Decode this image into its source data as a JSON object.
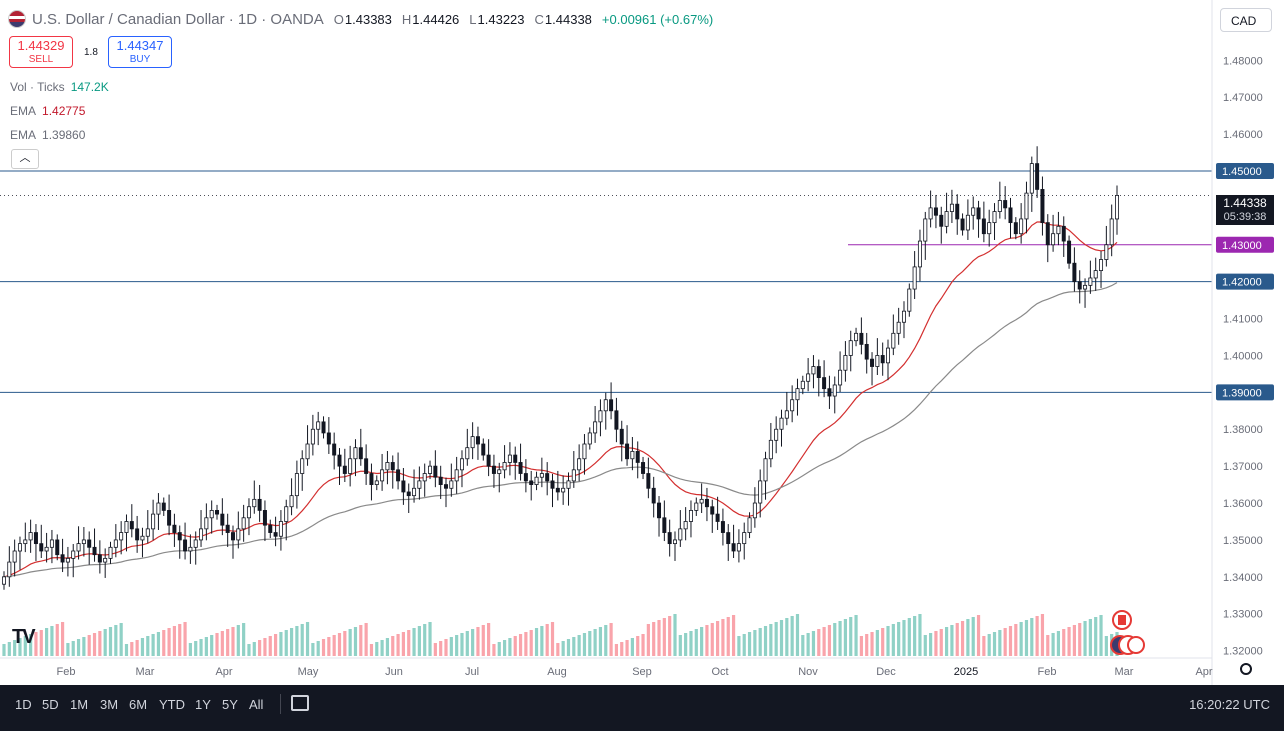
{
  "header": {
    "symbol_title": "U.S. Dollar / Canadian Dollar · 1D · OANDA",
    "open_label": "O",
    "open": "1.43383",
    "high_label": "H",
    "high": "1.44426",
    "low_label": "L",
    "low": "1.43223",
    "close_label": "C",
    "close": "1.44338",
    "change": "+0.00961 (+0.67%)"
  },
  "trade": {
    "sell_price": "1.44329",
    "sell_label": "SELL",
    "spread": "1.8",
    "buy_price": "1.44347",
    "buy_label": "BUY"
  },
  "indicators": [
    {
      "name": "Vol · Ticks",
      "value": "147.2K",
      "color": "#089981"
    },
    {
      "name": "EMA",
      "value": "1.42775",
      "color": "#c2182b"
    },
    {
      "name": "EMA",
      "value": "1.39860",
      "color": "#6a6d78"
    }
  ],
  "currency": "CAD",
  "last_price_label": {
    "price": "1.44338",
    "countdown": "05:39:38"
  },
  "timeframes": [
    "1D",
    "5D",
    "1M",
    "3M",
    "6M",
    "YTD",
    "1Y",
    "5Y",
    "All"
  ],
  "clock": "16:20:22 UTC",
  "chart_data": {
    "type": "candlestick",
    "x_ticks": [
      "Feb",
      "Mar",
      "Apr",
      "May",
      "Jun",
      "Jul",
      "Aug",
      "Sep",
      "Oct",
      "Nov",
      "Dec",
      "2025",
      "Feb",
      "Mar",
      "Apr"
    ],
    "y_ticks": [
      "1.48000",
      "1.47000",
      "1.46000",
      "1.45000",
      "1.44000",
      "1.43000",
      "1.42000",
      "1.41000",
      "1.40000",
      "1.39000",
      "1.38000",
      "1.37000",
      "1.36000",
      "1.35000",
      "1.34000",
      "1.33000",
      "1.32000"
    ],
    "ylim": [
      1.318,
      1.4855
    ],
    "horizontal_levels": [
      {
        "label": "1.45000",
        "value": 1.45,
        "color": "#2a5a8c"
      },
      {
        "label": "1.43000",
        "value": 1.43,
        "color": "#9c27b0"
      },
      {
        "label": "1.42000",
        "value": 1.42,
        "color": "#2a5a8c"
      },
      {
        "label": "1.39000",
        "value": 1.39,
        "color": "#2a5a8c"
      }
    ],
    "last_close": 1.44338,
    "up_color": "#ffffff",
    "down_color": "#131722",
    "ema_fast_color": "#d32f2f",
    "ema_slow_color": "#8a8a8a",
    "close_series": [
      1.34,
      1.344,
      1.347,
      1.349,
      1.35,
      1.352,
      1.349,
      1.347,
      1.348,
      1.35,
      1.346,
      1.344,
      1.345,
      1.347,
      1.349,
      1.35,
      1.348,
      1.346,
      1.344,
      1.345,
      1.348,
      1.35,
      1.352,
      1.355,
      1.353,
      1.35,
      1.351,
      1.353,
      1.357,
      1.36,
      1.358,
      1.354,
      1.352,
      1.35,
      1.347,
      1.348,
      1.35,
      1.353,
      1.356,
      1.358,
      1.357,
      1.354,
      1.352,
      1.35,
      1.353,
      1.356,
      1.359,
      1.361,
      1.358,
      1.354,
      1.352,
      1.351,
      1.355,
      1.359,
      1.362,
      1.368,
      1.372,
      1.376,
      1.38,
      1.382,
      1.379,
      1.376,
      1.373,
      1.37,
      1.368,
      1.372,
      1.375,
      1.372,
      1.368,
      1.365,
      1.366,
      1.369,
      1.371,
      1.369,
      1.366,
      1.363,
      1.362,
      1.364,
      1.366,
      1.368,
      1.37,
      1.367,
      1.365,
      1.364,
      1.366,
      1.369,
      1.372,
      1.375,
      1.378,
      1.376,
      1.373,
      1.37,
      1.368,
      1.369,
      1.371,
      1.373,
      1.371,
      1.368,
      1.366,
      1.365,
      1.367,
      1.368,
      1.366,
      1.364,
      1.363,
      1.364,
      1.366,
      1.369,
      1.372,
      1.376,
      1.379,
      1.382,
      1.385,
      1.388,
      1.385,
      1.38,
      1.376,
      1.372,
      1.374,
      1.371,
      1.368,
      1.364,
      1.36,
      1.356,
      1.352,
      1.349,
      1.35,
      1.353,
      1.355,
      1.358,
      1.36,
      1.361,
      1.359,
      1.357,
      1.355,
      1.352,
      1.349,
      1.347,
      1.349,
      1.352,
      1.356,
      1.36,
      1.366,
      1.372,
      1.377,
      1.38,
      1.383,
      1.385,
      1.388,
      1.391,
      1.393,
      1.395,
      1.397,
      1.394,
      1.391,
      1.389,
      1.392,
      1.396,
      1.4,
      1.404,
      1.406,
      1.403,
      1.399,
      1.397,
      1.4,
      1.398,
      1.402,
      1.406,
      1.409,
      1.412,
      1.418,
      1.424,
      1.431,
      1.437,
      1.44,
      1.438,
      1.435,
      1.439,
      1.441,
      1.437,
      1.434,
      1.438,
      1.44,
      1.437,
      1.433,
      1.436,
      1.439,
      1.442,
      1.44,
      1.436,
      1.433,
      1.437,
      1.444,
      1.452,
      1.445,
      1.436,
      1.43,
      1.433,
      1.435,
      1.431,
      1.425,
      1.42,
      1.418,
      1.419,
      1.421,
      1.423,
      1.426,
      1.43,
      1.437,
      1.44338
    ]
  }
}
